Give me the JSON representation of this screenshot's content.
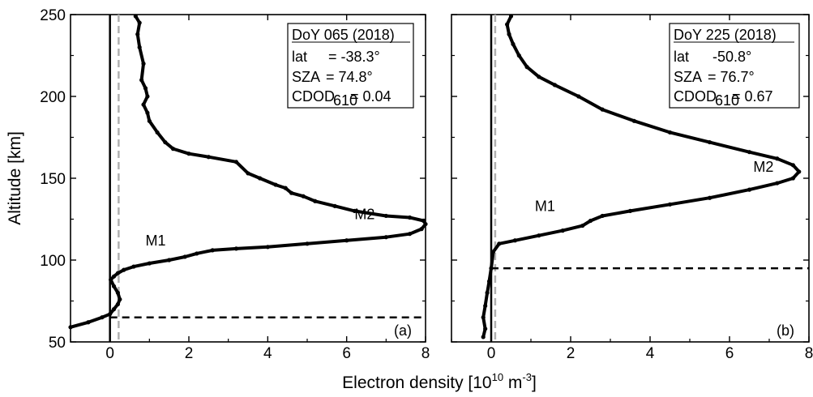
{
  "chart_data": [
    {
      "type": "line",
      "panel_label": "(a)",
      "ylabel": "Altitude [km]",
      "xlim": [
        -1,
        8
      ],
      "ylim": [
        50,
        250
      ],
      "x_ticks": [
        0,
        2,
        4,
        6,
        8
      ],
      "y_ticks": [
        50,
        100,
        150,
        200,
        250
      ],
      "legend_box": {
        "title": "DoY 065 (2018)",
        "lat_label": "lat",
        "lat_value": "= -38.3°",
        "sza_label": "SZA",
        "sza_value": "= 74.8°",
        "cdod_label": "CDOD",
        "cdod_sub": "610",
        "cdod_value": "= 0.04"
      },
      "annotations": [
        {
          "text": "M1",
          "x": 0.9,
          "y": 109
        },
        {
          "text": "M2",
          "x": 6.2,
          "y": 125
        }
      ],
      "reference_lines": {
        "solid_vertical_x": 0,
        "dashed_grey_vertical_x": 0.22,
        "dashed_horizontal_y": 65
      },
      "series": [
        {
          "x": [
            -1.0,
            -0.55,
            -0.2,
            0.0,
            0.1,
            0.2,
            0.25,
            0.2,
            0.1,
            0.02,
            0.1,
            0.2,
            0.35,
            0.6,
            1.0,
            1.5,
            1.9,
            2.2,
            2.6,
            3.2,
            4.0,
            5.0,
            6.0,
            7.0,
            7.6,
            7.9,
            8.0,
            7.95,
            7.6,
            7.0,
            6.2,
            5.7,
            5.2,
            4.9,
            4.6,
            4.45,
            4.2,
            3.8,
            3.5,
            3.2,
            2.5,
            2.0,
            1.6,
            1.4,
            1.2,
            1.0,
            0.95,
            0.85,
            0.95,
            0.9,
            0.8,
            0.85,
            0.75,
            0.7,
            0.75,
            0.65
          ],
          "y": [
            59,
            62,
            65,
            67,
            70,
            73,
            76,
            80,
            84,
            88,
            90,
            92,
            94,
            96,
            98,
            100,
            102,
            104,
            106,
            107,
            108,
            110,
            112,
            114,
            116,
            119,
            122,
            124,
            126,
            127,
            130,
            133,
            136,
            139,
            141,
            144,
            146,
            150,
            153,
            160,
            163,
            165,
            168,
            172,
            178,
            185,
            190,
            195,
            200,
            205,
            210,
            220,
            230,
            238,
            245,
            249
          ]
        }
      ]
    },
    {
      "type": "line",
      "panel_label": "(b)",
      "xlim": [
        -1,
        8
      ],
      "ylim": [
        50,
        250
      ],
      "x_ticks": [
        0,
        2,
        4,
        6,
        8
      ],
      "y_ticks": [
        50,
        100,
        150,
        200,
        250
      ],
      "legend_box": {
        "title": "DoY 225 (2018)",
        "lat_label": "lat",
        "lat_value": "-50.8°",
        "sza_label": "SZA",
        "sza_value": "= 76.7°",
        "cdod_label": "CDOD",
        "cdod_sub": "610",
        "cdod_value": "= 0.67"
      },
      "annotations": [
        {
          "text": "M1",
          "x": 1.1,
          "y": 130
        },
        {
          "text": "M2",
          "x": 6.6,
          "y": 154
        }
      ],
      "reference_lines": {
        "solid_vertical_x": 0,
        "dashed_grey_vertical_x": 0.1,
        "dashed_horizontal_y": 95
      },
      "series": [
        {
          "x": [
            -0.2,
            -0.15,
            -0.2,
            -0.15,
            -0.1,
            -0.05,
            0.0,
            0.05,
            0.2,
            0.6,
            1.2,
            1.8,
            2.3,
            2.5,
            2.8,
            3.5,
            4.5,
            5.5,
            6.5,
            7.2,
            7.6,
            7.75,
            7.6,
            7.2,
            6.5,
            5.5,
            4.5,
            3.6,
            2.8,
            2.2,
            1.6,
            1.2,
            0.9,
            0.7,
            0.55,
            0.45,
            0.4,
            0.5
          ],
          "y": [
            53,
            58,
            65,
            72,
            80,
            87,
            95,
            105,
            110,
            112,
            115,
            118,
            121,
            124,
            127,
            130,
            134,
            138,
            143,
            147,
            150,
            154,
            158,
            162,
            166,
            172,
            178,
            185,
            192,
            200,
            207,
            212,
            218,
            225,
            232,
            238,
            244,
            249
          ]
        }
      ]
    }
  ],
  "xlabel_main": "Electron density [10",
  "xlabel_exp1": "10",
  "xlabel_mid": " m",
  "xlabel_exp2": "-3",
  "xlabel_end": "]"
}
